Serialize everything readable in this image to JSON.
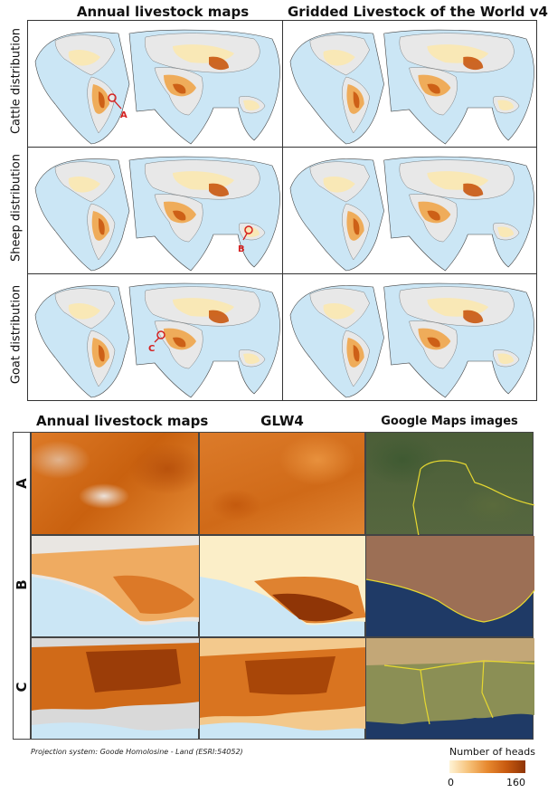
{
  "top": {
    "col_titles": [
      "Annual livestock maps",
      "Gridded Livestock of the World v4"
    ],
    "row_labels": [
      "Cattle distribution",
      "Sheep distribution",
      "Goat distribution"
    ],
    "markers": [
      {
        "label": "A",
        "row": "Cattle distribution",
        "region": "South America"
      },
      {
        "label": "B",
        "row": "Sheep distribution",
        "region": "Australia"
      },
      {
        "label": "C",
        "row": "Goat distribution",
        "region": "West Africa"
      }
    ]
  },
  "bottom": {
    "col_titles": [
      "Annual livestock maps",
      "GLW4",
      "Google Maps images"
    ],
    "row_labels": [
      "A",
      "B",
      "C"
    ]
  },
  "footer": {
    "projection_note": "Projection system: Goode Homolosine - Land (ESRI:54052)"
  },
  "legend": {
    "title": "Number of heads",
    "min": "0",
    "max": "160",
    "colors": [
      "#fff4d6",
      "#f6c27a",
      "#e7892f",
      "#c85a10",
      "#8f3506"
    ]
  },
  "colors": {
    "ocean": "#cbe6f5",
    "land_empty": "#e8e8e8",
    "low": "#fbe8b0",
    "mid": "#efa54a",
    "high": "#c9580f",
    "marker": "#d42020"
  }
}
